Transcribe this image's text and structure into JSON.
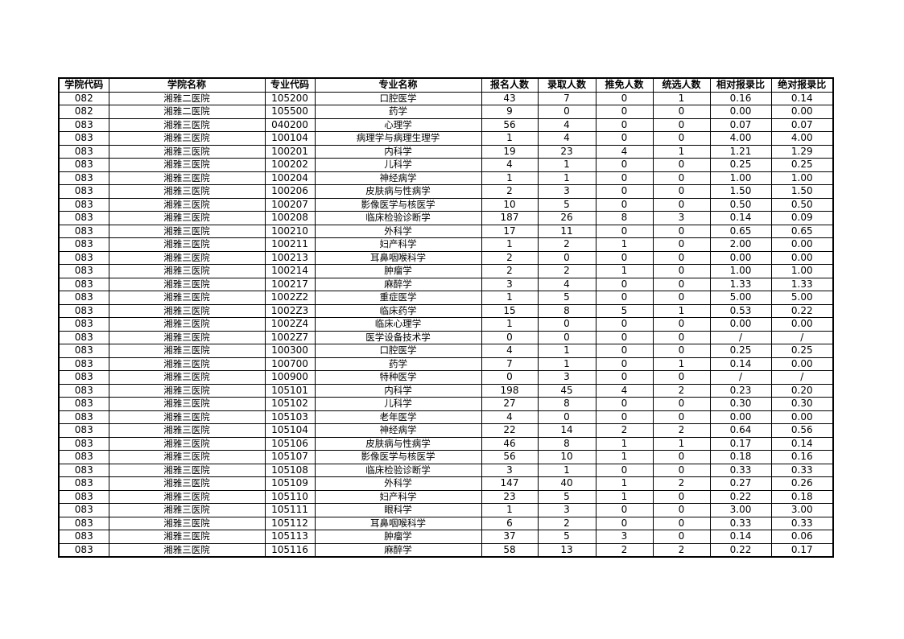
{
  "table": {
    "header": [
      "学院代码",
      "学院名称",
      "专业代码",
      "专业名称",
      "报名人数",
      "录取人数",
      "推免人数",
      "统选人数",
      "相对报录比",
      "绝对报录比"
    ],
    "rows": [
      [
        "082",
        "湘雅二医院",
        "105200",
        "口腔医学",
        "43",
        "7",
        "0",
        "1",
        "0.16",
        "0.14"
      ],
      [
        "082",
        "湘雅二医院",
        "105500",
        "药学",
        "9",
        "0",
        "0",
        "0",
        "0.00",
        "0.00"
      ],
      [
        "083",
        "湘雅三医院",
        "040200",
        "心理学",
        "56",
        "4",
        "0",
        "0",
        "0.07",
        "0.07"
      ],
      [
        "083",
        "湘雅三医院",
        "100104",
        "病理学与病理生理学",
        "1",
        "4",
        "0",
        "0",
        "4.00",
        "4.00"
      ],
      [
        "083",
        "湘雅三医院",
        "100201",
        "内科学",
        "19",
        "23",
        "4",
        "1",
        "1.21",
        "1.29"
      ],
      [
        "083",
        "湘雅三医院",
        "100202",
        "儿科学",
        "4",
        "1",
        "0",
        "0",
        "0.25",
        "0.25"
      ],
      [
        "083",
        "湘雅三医院",
        "100204",
        "神经病学",
        "1",
        "1",
        "0",
        "0",
        "1.00",
        "1.00"
      ],
      [
        "083",
        "湘雅三医院",
        "100206",
        "皮肤病与性病学",
        "2",
        "3",
        "0",
        "0",
        "1.50",
        "1.50"
      ],
      [
        "083",
        "湘雅三医院",
        "100207",
        "影像医学与核医学",
        "10",
        "5",
        "0",
        "0",
        "0.50",
        "0.50"
      ],
      [
        "083",
        "湘雅三医院",
        "100208",
        "临床检验诊断学",
        "187",
        "26",
        "8",
        "3",
        "0.14",
        "0.09"
      ],
      [
        "083",
        "湘雅三医院",
        "100210",
        "外科学",
        "17",
        "11",
        "0",
        "0",
        "0.65",
        "0.65"
      ],
      [
        "083",
        "湘雅三医院",
        "100211",
        "妇产科学",
        "1",
        "2",
        "1",
        "0",
        "2.00",
        "0.00"
      ],
      [
        "083",
        "湘雅三医院",
        "100213",
        "耳鼻咽喉科学",
        "2",
        "0",
        "0",
        "0",
        "0.00",
        "0.00"
      ],
      [
        "083",
        "湘雅三医院",
        "100214",
        "肿瘤学",
        "2",
        "2",
        "1",
        "0",
        "1.00",
        "1.00"
      ],
      [
        "083",
        "湘雅三医院",
        "100217",
        "麻醉学",
        "3",
        "4",
        "0",
        "0",
        "1.33",
        "1.33"
      ],
      [
        "083",
        "湘雅三医院",
        "1002Z2",
        "重症医学",
        "1",
        "5",
        "0",
        "0",
        "5.00",
        "5.00"
      ],
      [
        "083",
        "湘雅三医院",
        "1002Z3",
        "临床药学",
        "15",
        "8",
        "5",
        "1",
        "0.53",
        "0.22"
      ],
      [
        "083",
        "湘雅三医院",
        "1002Z4",
        "临床心理学",
        "1",
        "0",
        "0",
        "0",
        "0.00",
        "0.00"
      ],
      [
        "083",
        "湘雅三医院",
        "1002Z7",
        "医学设备技术学",
        "0",
        "0",
        "0",
        "0",
        "/",
        "/"
      ],
      [
        "083",
        "湘雅三医院",
        "100300",
        "口腔医学",
        "4",
        "1",
        "0",
        "0",
        "0.25",
        "0.25"
      ],
      [
        "083",
        "湘雅三医院",
        "100700",
        "药学",
        "7",
        "1",
        "0",
        "1",
        "0.14",
        "0.00"
      ],
      [
        "083",
        "湘雅三医院",
        "100900",
        "特种医学",
        "0",
        "3",
        "0",
        "0",
        "/",
        "/"
      ],
      [
        "083",
        "湘雅三医院",
        "105101",
        "内科学",
        "198",
        "45",
        "4",
        "2",
        "0.23",
        "0.20"
      ],
      [
        "083",
        "湘雅三医院",
        "105102",
        "儿科学",
        "27",
        "8",
        "0",
        "0",
        "0.30",
        "0.30"
      ],
      [
        "083",
        "湘雅三医院",
        "105103",
        "老年医学",
        "4",
        "0",
        "0",
        "0",
        "0.00",
        "0.00"
      ],
      [
        "083",
        "湘雅三医院",
        "105104",
        "神经病学",
        "22",
        "14",
        "2",
        "2",
        "0.64",
        "0.56"
      ],
      [
        "083",
        "湘雅三医院",
        "105106",
        "皮肤病与性病学",
        "46",
        "8",
        "1",
        "1",
        "0.17",
        "0.14"
      ],
      [
        "083",
        "湘雅三医院",
        "105107",
        "影像医学与核医学",
        "56",
        "10",
        "1",
        "0",
        "0.18",
        "0.16"
      ],
      [
        "083",
        "湘雅三医院",
        "105108",
        "临床检验诊断学",
        "3",
        "1",
        "0",
        "0",
        "0.33",
        "0.33"
      ],
      [
        "083",
        "湘雅三医院",
        "105109",
        "外科学",
        "147",
        "40",
        "1",
        "2",
        "0.27",
        "0.26"
      ],
      [
        "083",
        "湘雅三医院",
        "105110",
        "妇产科学",
        "23",
        "5",
        "1",
        "0",
        "0.22",
        "0.18"
      ],
      [
        "083",
        "湘雅三医院",
        "105111",
        "眼科学",
        "1",
        "3",
        "0",
        "0",
        "3.00",
        "3.00"
      ],
      [
        "083",
        "湘雅三医院",
        "105112",
        "耳鼻咽喉科学",
        "6",
        "2",
        "0",
        "0",
        "0.33",
        "0.33"
      ],
      [
        "083",
        "湘雅三医院",
        "105113",
        "肿瘤学",
        "37",
        "5",
        "3",
        "0",
        "0.14",
        "0.06"
      ],
      [
        "083",
        "湘雅三医院",
        "105116",
        "麻醉学",
        "58",
        "13",
        "2",
        "2",
        "0.22",
        "0.17"
      ]
    ]
  }
}
